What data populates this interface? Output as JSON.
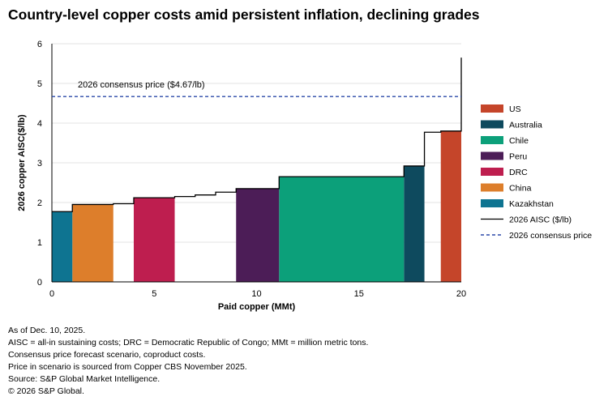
{
  "title": "Country-level copper costs amid persistent inflation, declining grades",
  "chart_data": {
    "type": "bar",
    "title": "Country-level copper costs amid persistent inflation, declining grades",
    "xlabel": "Paid copper (MMt)",
    "ylabel": "2026 copper AISC($/lb)",
    "xlim": [
      0,
      20
    ],
    "ylim": [
      0,
      6
    ],
    "xticks": [
      0,
      5,
      10,
      15,
      20
    ],
    "yticks": [
      0,
      1,
      2,
      3,
      4,
      5,
      6
    ],
    "grid": "horizontal",
    "legend_position": "right",
    "series": [
      {
        "name": "US",
        "color": "#C5452A",
        "bars": [
          {
            "x0": 19.0,
            "x1": 20.0,
            "value": 3.8
          }
        ]
      },
      {
        "name": "Australia",
        "color": "#0E4A5E",
        "bars": [
          {
            "x0": 17.2,
            "x1": 18.2,
            "value": 2.92
          }
        ]
      },
      {
        "name": "Chile",
        "color": "#0CA07A",
        "bars": [
          {
            "x0": 11.1,
            "x1": 17.2,
            "value": 2.65
          }
        ]
      },
      {
        "name": "Peru",
        "color": "#4C1D57",
        "bars": [
          {
            "x0": 9.0,
            "x1": 11.1,
            "value": 2.35
          }
        ]
      },
      {
        "name": "DRC",
        "color": "#BE1E4F",
        "bars": [
          {
            "x0": 4.0,
            "x1": 6.0,
            "value": 2.12
          }
        ]
      },
      {
        "name": "China",
        "color": "#DD7E2B",
        "bars": [
          {
            "x0": 1.0,
            "x1": 3.0,
            "value": 1.95
          }
        ]
      },
      {
        "name": "Kazakhstan",
        "color": "#0E7491",
        "bars": [
          {
            "x0": 0.0,
            "x1": 1.0,
            "value": 1.77
          }
        ]
      }
    ],
    "aisc_line": {
      "name": "2026 AISC ($/lb)",
      "color": "#000000",
      "points": [
        [
          0,
          1.77
        ],
        [
          1.0,
          1.77
        ],
        [
          1.0,
          1.95
        ],
        [
          3.0,
          1.95
        ],
        [
          3.0,
          1.97
        ],
        [
          4.0,
          1.97
        ],
        [
          4.0,
          2.12
        ],
        [
          6.0,
          2.12
        ],
        [
          6.0,
          2.15
        ],
        [
          7.0,
          2.15
        ],
        [
          7.0,
          2.19
        ],
        [
          8.0,
          2.19
        ],
        [
          8.0,
          2.26
        ],
        [
          9.0,
          2.26
        ],
        [
          9.0,
          2.35
        ],
        [
          11.1,
          2.35
        ],
        [
          11.1,
          2.65
        ],
        [
          17.2,
          2.65
        ],
        [
          17.2,
          2.92
        ],
        [
          18.2,
          2.92
        ],
        [
          18.2,
          3.77
        ],
        [
          19.0,
          3.77
        ],
        [
          19.0,
          3.8
        ],
        [
          20.0,
          3.8
        ],
        [
          20.0,
          5.65
        ]
      ]
    },
    "consensus_price": {
      "name": "2026 consensus price",
      "value": 4.67,
      "label": "2026 consensus price ($4.67/lb)",
      "color": "#2A48A8"
    }
  },
  "notes": [
    "As of Dec. 10, 2025.",
    "AISC = all-in sustaining costs; DRC = Democratic Republic of Congo; MMt = million metric tons.",
    "Consensus price forecast scenario, coproduct costs.",
    "Price in scenario is sourced from Copper CBS November 2025.",
    "Source: S&P Global Market Intelligence.",
    "© 2026 S&P Global."
  ]
}
